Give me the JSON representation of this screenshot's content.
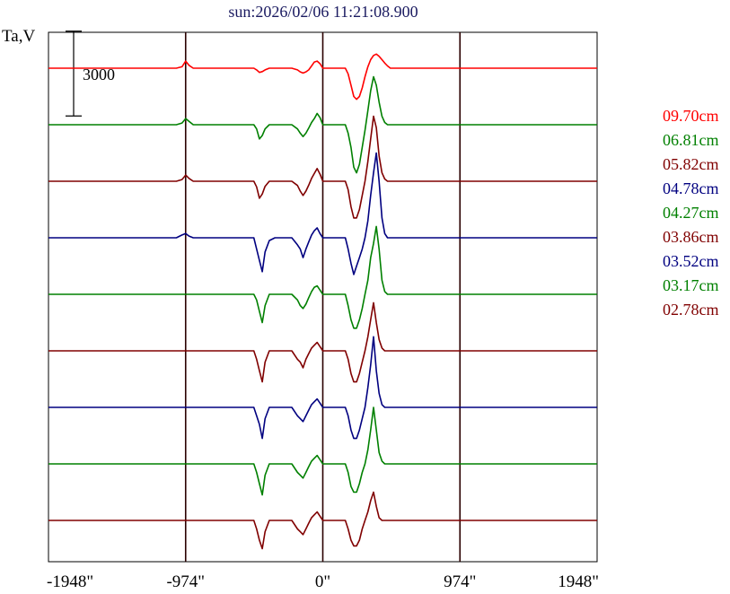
{
  "header": {
    "title": "sun:2026/02/06 11:21:08.900"
  },
  "chart_data": {
    "type": "line",
    "title": "sun:2026/02/06 11:21:08.900",
    "ylabel": "Ta,V",
    "scale_bar_label": "3000",
    "scale_bar_value": 3000,
    "x_range": [
      -1948,
      1948
    ],
    "x_ticks": [
      {
        "value": -1948,
        "label": "-1948\""
      },
      {
        "value": -974,
        "label": "-974\""
      },
      {
        "value": 0,
        "label": "0\""
      },
      {
        "value": 974,
        "label": "974\""
      },
      {
        "value": 1948,
        "label": "1948\""
      }
    ],
    "vertical_lines_at": [
      -974,
      0,
      974
    ],
    "x": [
      -1948,
      -1850,
      -1750,
      -1650,
      -1550,
      -1450,
      -1350,
      -1250,
      -1150,
      -1080,
      -1040,
      -1000,
      -974,
      -950,
      -920,
      -880,
      -840,
      -800,
      -760,
      -720,
      -680,
      -640,
      -600,
      -560,
      -520,
      -490,
      -470,
      -450,
      -430,
      -410,
      -380,
      -340,
      -300,
      -260,
      -220,
      -180,
      -160,
      -140,
      -120,
      -100,
      -80,
      -60,
      -40,
      -20,
      0,
      20,
      40,
      60,
      80,
      100,
      120,
      140,
      160,
      180,
      200,
      220,
      240,
      260,
      280,
      300,
      320,
      340,
      360,
      380,
      400,
      420,
      440,
      460,
      480,
      500,
      520,
      540,
      560,
      580,
      600,
      620,
      640,
      680,
      720,
      760,
      800,
      840,
      880,
      920,
      974,
      1000,
      1050,
      1100,
      1150,
      1250,
      1350,
      1450,
      1550,
      1650,
      1750,
      1850,
      1948
    ],
    "series": [
      {
        "name": "09.70cm",
        "color": "#ff0000",
        "offset": 0,
        "values": [
          0,
          0,
          0,
          0,
          0,
          0,
          0,
          0,
          0,
          0,
          0,
          50,
          250,
          100,
          0,
          0,
          0,
          0,
          0,
          0,
          0,
          0,
          0,
          0,
          0,
          0,
          -60,
          -150,
          -120,
          -60,
          0,
          0,
          0,
          0,
          0,
          -60,
          -130,
          -170,
          -130,
          -60,
          80,
          220,
          250,
          160,
          0,
          0,
          0,
          0,
          0,
          0,
          0,
          0,
          0,
          -200,
          -600,
          -1000,
          -1100,
          -1000,
          -700,
          -300,
          50,
          300,
          450,
          500,
          420,
          300,
          180,
          80,
          0,
          0,
          0,
          0,
          0,
          0,
          0,
          0,
          0,
          0,
          0,
          0,
          0,
          0,
          0,
          0,
          0,
          0,
          0,
          0,
          0,
          0,
          0,
          0,
          0,
          0,
          0,
          0,
          0
        ]
      },
      {
        "name": "06.81cm",
        "color": "#008000",
        "offset": -2000,
        "values": [
          0,
          0,
          0,
          0,
          0,
          0,
          0,
          0,
          0,
          0,
          0,
          60,
          220,
          120,
          0,
          0,
          0,
          0,
          0,
          0,
          0,
          0,
          0,
          0,
          0,
          0,
          -150,
          -500,
          -380,
          -150,
          0,
          0,
          0,
          0,
          0,
          -150,
          -300,
          -420,
          -300,
          -120,
          80,
          220,
          400,
          250,
          0,
          0,
          0,
          0,
          0,
          0,
          0,
          0,
          0,
          -300,
          -800,
          -1500,
          -1700,
          -1400,
          -800,
          -200,
          500,
          1200,
          1700,
          1400,
          800,
          300,
          80,
          0,
          0,
          0,
          0,
          0,
          0,
          0,
          0,
          0,
          0,
          0,
          0,
          0,
          0,
          0,
          0,
          0,
          0,
          0,
          0,
          0,
          0,
          0,
          0,
          0,
          0,
          0,
          0,
          0,
          0
        ]
      },
      {
        "name": "05.82cm",
        "color": "#800000",
        "offset": -4000,
        "values": [
          0,
          0,
          0,
          0,
          0,
          0,
          0,
          0,
          0,
          0,
          0,
          60,
          220,
          100,
          0,
          0,
          0,
          0,
          0,
          0,
          0,
          0,
          0,
          0,
          0,
          0,
          -200,
          -600,
          -450,
          -180,
          0,
          0,
          0,
          0,
          0,
          -150,
          -350,
          -500,
          -350,
          -140,
          100,
          280,
          450,
          250,
          0,
          0,
          0,
          0,
          0,
          0,
          0,
          0,
          0,
          -300,
          -900,
          -1300,
          -1300,
          -1000,
          -500,
          0,
          700,
          1500,
          2300,
          1900,
          900,
          300,
          80,
          0,
          0,
          0,
          0,
          0,
          0,
          0,
          0,
          0,
          0,
          0,
          0,
          0,
          0,
          0,
          0,
          0,
          0,
          0,
          0,
          0,
          0,
          0,
          0,
          0,
          0,
          0,
          0,
          0,
          0
        ]
      },
      {
        "name": "04.78cm",
        "color": "#000080",
        "offset": -6000,
        "values": [
          0,
          0,
          0,
          0,
          0,
          0,
          0,
          0,
          0,
          0,
          0,
          100,
          150,
          60,
          0,
          0,
          0,
          0,
          0,
          0,
          0,
          0,
          0,
          0,
          0,
          0,
          -400,
          -800,
          -1200,
          -500,
          -100,
          0,
          0,
          0,
          0,
          -250,
          -400,
          -700,
          -400,
          -150,
          100,
          250,
          350,
          150,
          0,
          0,
          0,
          0,
          0,
          0,
          0,
          0,
          0,
          -400,
          -900,
          -1300,
          -1000,
          -700,
          -400,
          0,
          600,
          1500,
          2300,
          3000,
          2000,
          700,
          150,
          0,
          0,
          0,
          0,
          0,
          0,
          0,
          0,
          0,
          0,
          0,
          0,
          0,
          0,
          0,
          0,
          0,
          0,
          0,
          0,
          0,
          0,
          0,
          0,
          0,
          0,
          0,
          0,
          0,
          0
        ]
      },
      {
        "name": "04.27cm",
        "color": "#008000",
        "offset": -8000,
        "values": [
          0,
          0,
          0,
          0,
          0,
          0,
          0,
          0,
          0,
          0,
          0,
          0,
          0,
          0,
          0,
          0,
          0,
          0,
          0,
          0,
          0,
          0,
          0,
          0,
          0,
          0,
          -200,
          -600,
          -1000,
          -400,
          0,
          0,
          0,
          0,
          0,
          -200,
          -400,
          -500,
          -350,
          -120,
          100,
          250,
          300,
          150,
          0,
          0,
          0,
          0,
          0,
          0,
          0,
          0,
          0,
          -400,
          -900,
          -1200,
          -1200,
          -900,
          -500,
          0,
          500,
          1300,
          1800,
          2400,
          1600,
          500,
          100,
          0,
          0,
          0,
          0,
          0,
          0,
          0,
          0,
          0,
          0,
          0,
          0,
          0,
          0,
          0,
          0,
          0,
          0,
          0,
          0,
          0,
          0,
          0,
          0,
          0,
          0,
          0,
          0,
          0,
          0
        ]
      },
      {
        "name": "03.86cm",
        "color": "#800000",
        "offset": -10000,
        "values": [
          0,
          0,
          0,
          0,
          0,
          0,
          0,
          0,
          0,
          0,
          0,
          0,
          0,
          0,
          0,
          0,
          0,
          0,
          0,
          0,
          0,
          0,
          0,
          0,
          0,
          0,
          -300,
          -700,
          -1100,
          -400,
          0,
          0,
          0,
          0,
          0,
          -300,
          -400,
          -600,
          -300,
          -100,
          100,
          200,
          300,
          150,
          0,
          0,
          0,
          0,
          0,
          0,
          0,
          0,
          0,
          -300,
          -800,
          -1100,
          -1100,
          -800,
          -400,
          0,
          500,
          1100,
          1700,
          1000,
          400,
          100,
          0,
          0,
          0,
          0,
          0,
          0,
          0,
          0,
          0,
          0,
          0,
          0,
          0,
          0,
          0,
          0,
          0,
          0,
          0,
          0,
          0,
          0,
          0,
          0,
          0,
          0,
          0,
          0,
          0,
          0,
          0
        ]
      },
      {
        "name": "03.52cm",
        "color": "#000080",
        "offset": -12000,
        "values": [
          0,
          0,
          0,
          0,
          0,
          0,
          0,
          0,
          0,
          0,
          0,
          0,
          0,
          0,
          0,
          0,
          0,
          0,
          0,
          0,
          0,
          0,
          0,
          0,
          0,
          0,
          -300,
          -600,
          -1100,
          -400,
          0,
          0,
          0,
          0,
          0,
          -300,
          -400,
          -500,
          -300,
          -100,
          100,
          200,
          300,
          150,
          0,
          0,
          0,
          0,
          0,
          0,
          0,
          0,
          0,
          -300,
          -800,
          -1100,
          -1100,
          -800,
          -400,
          0,
          700,
          1500,
          2500,
          1300,
          500,
          100,
          0,
          0,
          0,
          0,
          0,
          0,
          0,
          0,
          0,
          0,
          0,
          0,
          0,
          0,
          0,
          0,
          0,
          0,
          0,
          0,
          0,
          0,
          0,
          0,
          0,
          0,
          0,
          0,
          0,
          0,
          0
        ]
      },
      {
        "name": "03.17cm",
        "color": "#008000",
        "offset": -14000,
        "values": [
          0,
          0,
          0,
          0,
          0,
          0,
          0,
          0,
          0,
          0,
          0,
          0,
          0,
          0,
          0,
          0,
          0,
          0,
          0,
          0,
          0,
          0,
          0,
          0,
          0,
          0,
          -300,
          -700,
          -1100,
          -400,
          0,
          0,
          0,
          0,
          0,
          -300,
          -400,
          -500,
          -300,
          -100,
          100,
          200,
          300,
          150,
          0,
          0,
          0,
          0,
          0,
          0,
          0,
          0,
          0,
          -300,
          -800,
          -1000,
          -1000,
          -700,
          -300,
          0,
          500,
          1200,
          2000,
          1200,
          400,
          100,
          0,
          0,
          0,
          0,
          0,
          0,
          0,
          0,
          0,
          0,
          0,
          0,
          0,
          0,
          0,
          0,
          0,
          0,
          0,
          0,
          0,
          0,
          0,
          0,
          0,
          0,
          0,
          0,
          0,
          0,
          0
        ]
      },
      {
        "name": "02.78cm",
        "color": "#800000",
        "offset": -16000,
        "values": [
          0,
          0,
          0,
          0,
          0,
          0,
          0,
          0,
          0,
          0,
          0,
          0,
          0,
          0,
          0,
          0,
          0,
          0,
          0,
          0,
          0,
          0,
          0,
          0,
          0,
          0,
          -300,
          -700,
          -1000,
          -400,
          0,
          0,
          0,
          0,
          0,
          -300,
          -400,
          -500,
          -300,
          -100,
          100,
          200,
          300,
          150,
          0,
          0,
          0,
          0,
          0,
          0,
          0,
          0,
          0,
          -300,
          -700,
          -900,
          -900,
          -700,
          -300,
          0,
          300,
          700,
          1000,
          500,
          100,
          0,
          0,
          0,
          0,
          0,
          0,
          0,
          0,
          0,
          0,
          0,
          0,
          0,
          0,
          0,
          0,
          0,
          0,
          0,
          0,
          0,
          0,
          0,
          0,
          0,
          0,
          0,
          0,
          0,
          0,
          0,
          0
        ]
      }
    ]
  }
}
